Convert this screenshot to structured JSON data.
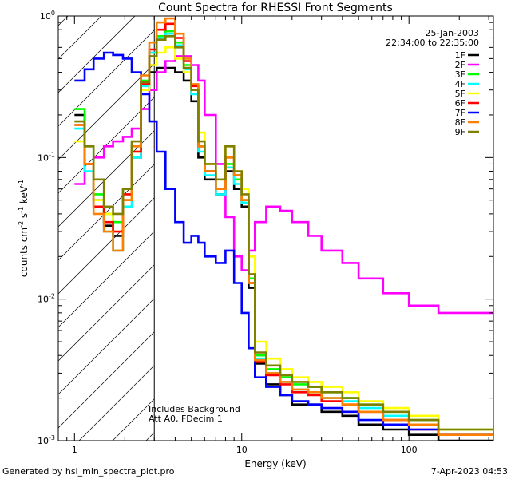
{
  "chart_data": {
    "type": "line",
    "step": true,
    "title": "Count Spectra for RHESSI Front Segments",
    "xlabel": "Energy (keV)",
    "ylabel_parts": [
      "counts cm",
      "-2",
      " s",
      "-1",
      " keV",
      "-1"
    ],
    "xscale": "log",
    "yscale": "log",
    "xlim": [
      0.8,
      320
    ],
    "ylim": [
      0.001,
      1.0
    ],
    "x_ticks": [
      {
        "value": 1,
        "label": "1"
      },
      {
        "value": 10,
        "label": "10"
      },
      {
        "value": 100,
        "label": "100"
      }
    ],
    "y_ticks": [
      {
        "value": 1.0,
        "base": "10",
        "exp": "0"
      },
      {
        "value": 0.1,
        "base": "10",
        "exp": "-1"
      },
      {
        "value": 0.01,
        "base": "10",
        "exp": "-2"
      },
      {
        "value": 0.001,
        "base": "10",
        "exp": "-3"
      }
    ],
    "date": "25-Jan-2003",
    "time_range": "22:34:00 to 22:35:00",
    "notes": [
      "Includes Background",
      "Att A0, FDecim 1"
    ],
    "excluded_region": {
      "x_max": 3
    },
    "series": [
      {
        "name": "1F",
        "color": "#000000",
        "values": [
          0.2,
          0.09,
          0.05,
          0.033,
          0.028,
          0.05,
          0.1,
          0.3,
          0.4,
          0.43,
          0.43,
          0.4,
          0.35,
          0.25,
          0.1,
          0.07,
          0.055,
          0.08,
          0.06,
          0.045,
          0.012,
          0.0035,
          0.0025,
          0.0021,
          0.0018,
          0.0018,
          0.0016,
          0.0015,
          0.0013,
          0.0012,
          0.0011,
          0.001
        ]
      },
      {
        "name": "2F",
        "color": "#ff00ff",
        "values": [
          0.065,
          0.09,
          0.1,
          0.12,
          0.13,
          0.14,
          0.16,
          0.22,
          0.3,
          0.4,
          0.48,
          0.52,
          0.52,
          0.45,
          0.35,
          0.2,
          0.09,
          0.038,
          0.02,
          0.016,
          0.022,
          0.035,
          0.045,
          0.042,
          0.035,
          0.028,
          0.022,
          0.018,
          0.014,
          0.011,
          0.009,
          0.008
        ]
      },
      {
        "name": "3F",
        "color": "#00ff00",
        "values": [
          0.22,
          0.12,
          0.055,
          0.04,
          0.035,
          0.06,
          0.12,
          0.35,
          0.55,
          0.72,
          0.78,
          0.65,
          0.45,
          0.3,
          0.12,
          0.08,
          0.06,
          0.09,
          0.07,
          0.05,
          0.014,
          0.004,
          0.0032,
          0.0028,
          0.0025,
          0.0024,
          0.0022,
          0.002,
          0.0018,
          0.0016,
          0.0014,
          0.0012
        ]
      },
      {
        "name": "4F",
        "color": "#00ffff",
        "values": [
          0.16,
          0.08,
          0.045,
          0.03,
          0.022,
          0.045,
          0.1,
          0.32,
          0.55,
          0.7,
          0.75,
          0.62,
          0.42,
          0.28,
          0.11,
          0.075,
          0.055,
          0.085,
          0.065,
          0.048,
          0.013,
          0.0038,
          0.003,
          0.0026,
          0.0023,
          0.0022,
          0.002,
          0.0019,
          0.0017,
          0.0015,
          0.0013,
          0.0011
        ]
      },
      {
        "name": "5F",
        "color": "#ffff00",
        "values": [
          0.13,
          0.09,
          0.05,
          0.04,
          0.03,
          0.05,
          0.11,
          0.3,
          0.45,
          0.55,
          0.6,
          0.5,
          0.4,
          0.3,
          0.15,
          0.09,
          0.07,
          0.12,
          0.08,
          0.06,
          0.02,
          0.005,
          0.0038,
          0.0032,
          0.0028,
          0.0026,
          0.0024,
          0.0022,
          0.0019,
          0.0017,
          0.0015,
          0.0012
        ]
      },
      {
        "name": "6F",
        "color": "#ff0000",
        "values": [
          0.17,
          0.09,
          0.045,
          0.035,
          0.03,
          0.055,
          0.11,
          0.33,
          0.58,
          0.8,
          0.88,
          0.7,
          0.48,
          0.32,
          0.12,
          0.08,
          0.06,
          0.1,
          0.075,
          0.05,
          0.013,
          0.0036,
          0.0029,
          0.0025,
          0.0022,
          0.0021,
          0.0019,
          0.0018,
          0.0016,
          0.0014,
          0.0012,
          0.0011
        ]
      },
      {
        "name": "7F",
        "color": "#0000ff",
        "values": [
          0.35,
          0.42,
          0.5,
          0.55,
          0.53,
          0.5,
          0.4,
          0.28,
          0.18,
          0.11,
          0.06,
          0.035,
          0.025,
          0.028,
          0.025,
          0.02,
          0.018,
          0.022,
          0.013,
          0.008,
          0.0045,
          0.0028,
          0.0024,
          0.0021,
          0.0019,
          0.0018,
          0.0017,
          0.0016,
          0.0014,
          0.0013,
          0.0012,
          0.0011
        ]
      },
      {
        "name": "8F",
        "color": "#ff8000",
        "values": [
          0.17,
          0.09,
          0.04,
          0.03,
          0.022,
          0.05,
          0.12,
          0.38,
          0.65,
          0.9,
          0.96,
          0.75,
          0.5,
          0.33,
          0.12,
          0.08,
          0.06,
          0.1,
          0.075,
          0.05,
          0.013,
          0.0037,
          0.003,
          0.0026,
          0.0023,
          0.0022,
          0.002,
          0.0018,
          0.0016,
          0.0014,
          0.0013,
          0.0011
        ]
      },
      {
        "name": "9F",
        "color": "#808000",
        "values": [
          0.18,
          0.12,
          0.07,
          0.045,
          0.04,
          0.06,
          0.13,
          0.34,
          0.52,
          0.68,
          0.72,
          0.6,
          0.43,
          0.3,
          0.13,
          0.09,
          0.07,
          0.12,
          0.08,
          0.055,
          0.015,
          0.0042,
          0.0034,
          0.0029,
          0.0026,
          0.0024,
          0.0022,
          0.002,
          0.0018,
          0.0016,
          0.0014,
          0.0012
        ]
      }
    ],
    "energy_edges": [
      1.0,
      1.15,
      1.3,
      1.5,
      1.7,
      1.95,
      2.2,
      2.5,
      2.8,
      3.1,
      3.5,
      4.0,
      4.5,
      5.0,
      5.5,
      6.0,
      7.0,
      8.0,
      9.0,
      10.0,
      11.0,
      12.0,
      14.0,
      17.0,
      20.0,
      25.0,
      30.0,
      40.0,
      50.0,
      70.0,
      100.0,
      150.0,
      320.0
    ]
  },
  "footer": {
    "left": "Generated by hsi_min_spectra_plot.pro",
    "right": "7-Apr-2023 04:53"
  }
}
